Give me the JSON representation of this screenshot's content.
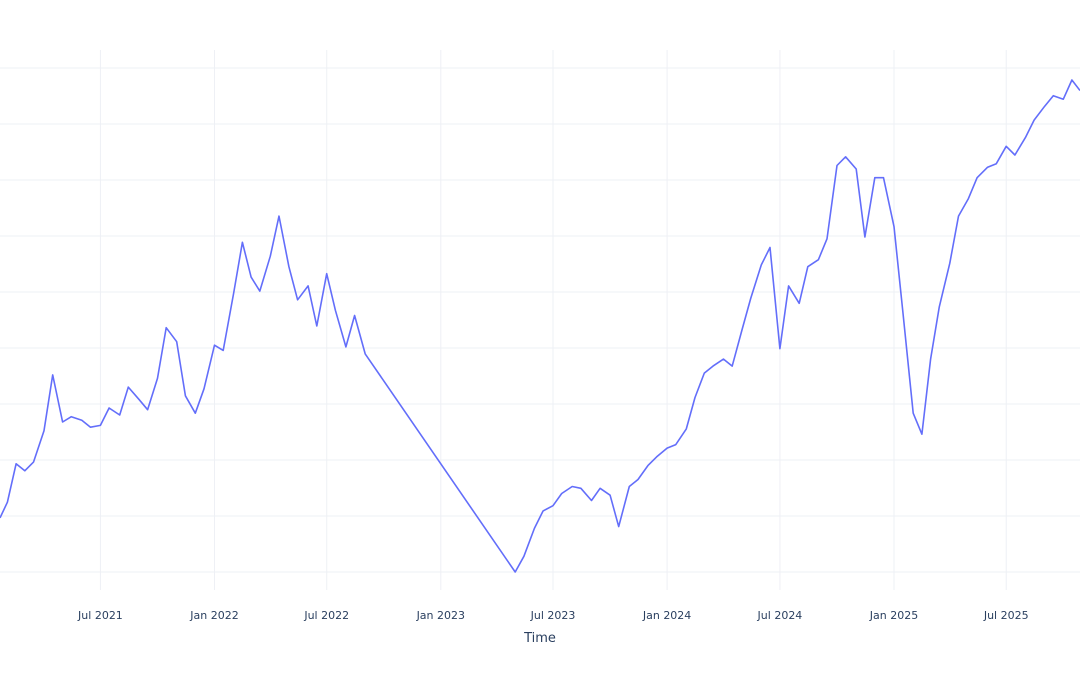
{
  "chart_data": {
    "type": "line",
    "title": "",
    "xlabel": "Time",
    "ylabel": "",
    "grid": true,
    "xlim": [
      "2021-01-20",
      "2025-10-28"
    ],
    "x_tick_labels": [
      "Jul 2021",
      "Jan 2022",
      "Jul 2022",
      "Jan 2023",
      "Jul 2023",
      "Jan 2024",
      "Jul 2024",
      "Jan 2025",
      "Jul 2025"
    ],
    "x_tick_dates": [
      "2021-07-01",
      "2022-01-01",
      "2022-07-01",
      "2023-01-01",
      "2023-07-01",
      "2024-01-01",
      "2024-07-01",
      "2025-01-01",
      "2025-07-01"
    ],
    "y_gridlines": 10,
    "y_tick_labels_visible": false,
    "line_color": "#636efa",
    "series": [
      {
        "x": [
          "2021-01-20",
          "2021-02-01",
          "2021-02-15",
          "2021-03-01",
          "2021-03-15",
          "2021-04-01",
          "2021-04-15",
          "2021-05-01",
          "2021-05-15",
          "2021-06-01",
          "2021-06-15",
          "2021-07-01",
          "2021-07-15",
          "2021-08-01",
          "2021-08-15",
          "2021-09-01",
          "2021-09-15",
          "2021-10-01",
          "2021-10-15",
          "2021-11-01",
          "2021-11-15",
          "2021-12-01",
          "2021-12-15",
          "2022-01-01",
          "2022-01-15",
          "2022-02-01",
          "2022-02-15",
          "2022-03-01",
          "2022-03-15",
          "2022-04-01",
          "2022-04-15",
          "2022-05-01",
          "2022-05-15",
          "2022-06-01",
          "2022-06-15",
          "2022-07-01",
          "2022-07-15",
          "2022-08-01",
          "2022-08-15",
          "2022-09-01",
          "2023-05-01",
          "2023-05-15",
          "2023-06-01",
          "2023-06-15",
          "2023-07-01",
          "2023-07-15",
          "2023-08-01",
          "2023-08-15",
          "2023-09-01",
          "2023-09-15",
          "2023-10-01",
          "2023-10-15",
          "2023-11-01",
          "2023-11-15",
          "2023-12-01",
          "2023-12-15",
          "2024-01-01",
          "2024-01-15",
          "2024-02-01",
          "2024-02-15",
          "2024-03-01",
          "2024-03-15",
          "2024-04-01",
          "2024-04-15",
          "2024-05-01",
          "2024-05-15",
          "2024-06-01",
          "2024-06-15",
          "2024-07-01",
          "2024-07-15",
          "2024-08-01",
          "2024-08-15",
          "2024-09-01",
          "2024-09-15",
          "2024-10-01",
          "2024-10-15",
          "2024-11-01",
          "2024-11-15",
          "2024-12-01",
          "2024-12-15",
          "2025-01-01",
          "2025-01-15",
          "2025-02-01",
          "2025-02-15",
          "2025-03-01",
          "2025-03-15",
          "2025-04-01",
          "2025-04-15",
          "2025-05-01",
          "2025-05-15",
          "2025-06-01",
          "2025-06-15",
          "2025-07-01",
          "2025-07-15",
          "2025-08-01",
          "2025-08-15",
          "2025-09-01",
          "2025-09-15",
          "2025-10-01",
          "2025-10-15",
          "2025-10-28"
        ],
        "y": [
          3.2,
          4.1,
          6.3,
          5.9,
          6.4,
          8.2,
          11.4,
          8.7,
          9.0,
          8.8,
          8.4,
          8.5,
          9.5,
          9.1,
          10.7,
          10.0,
          9.4,
          11.2,
          14.1,
          13.3,
          10.2,
          9.2,
          10.6,
          13.1,
          12.8,
          16.1,
          19.0,
          17.0,
          16.2,
          18.2,
          20.5,
          17.6,
          15.7,
          16.5,
          14.2,
          17.2,
          15.1,
          13.0,
          14.8,
          12.6,
          0.1,
          1.0,
          2.6,
          3.6,
          3.9,
          4.6,
          5.0,
          4.9,
          4.2,
          4.9,
          4.5,
          2.7,
          5.0,
          5.4,
          6.2,
          6.7,
          7.2,
          7.4,
          8.3,
          10.1,
          11.5,
          11.9,
          12.3,
          11.9,
          14.0,
          15.8,
          17.7,
          18.7,
          12.9,
          16.5,
          15.5,
          17.6,
          18.0,
          19.2,
          23.4,
          23.9,
          23.2,
          19.3,
          22.7,
          22.7,
          19.9,
          15.1,
          9.2,
          8.0,
          12.3,
          15.3,
          17.8,
          20.5,
          21.5,
          22.7,
          23.3,
          23.5,
          24.5,
          24.0,
          25.0,
          26.0,
          26.8,
          27.4,
          27.2,
          28.3,
          27.7
        ]
      }
    ]
  }
}
